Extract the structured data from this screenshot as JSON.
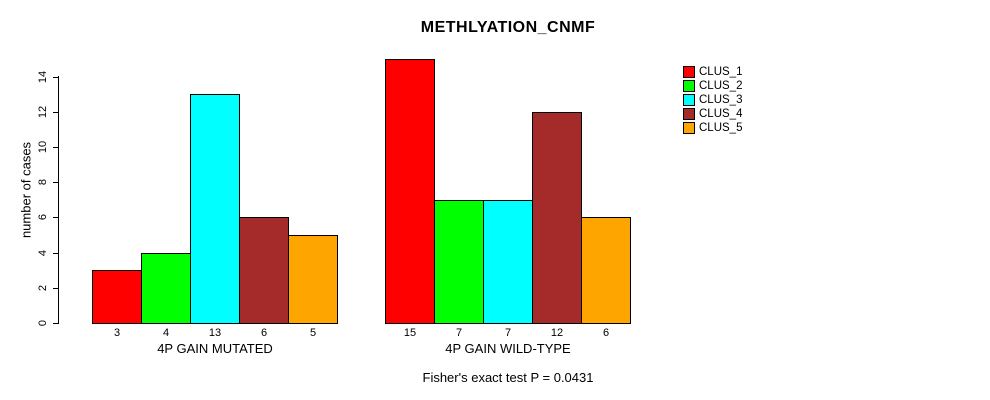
{
  "title": "METHLYATION_CNMF",
  "footer": "Fisher's exact test P = 0.0431",
  "y_axis": {
    "label": "number of cases",
    "ticks": [
      0,
      2,
      4,
      6,
      8,
      10,
      12,
      14
    ]
  },
  "chart_data": {
    "type": "bar",
    "title": "METHLYATION_CNMF",
    "xlabel": "",
    "ylabel": "number of cases",
    "ylim": [
      0,
      15
    ],
    "yticks": [
      0,
      2,
      4,
      6,
      8,
      10,
      12,
      14
    ],
    "grid": false,
    "legend_position": "top-right",
    "series": [
      {
        "name": "CLUS_1",
        "color": "#FF0000"
      },
      {
        "name": "CLUS_2",
        "color": "#00FF00"
      },
      {
        "name": "CLUS_3",
        "color": "#00FFFF"
      },
      {
        "name": "CLUS_4",
        "color": "#A52A2A"
      },
      {
        "name": "CLUS_5",
        "color": "#FFA500"
      }
    ],
    "groups": [
      {
        "label": "4P GAIN MUTATED",
        "values": [
          3,
          4,
          13,
          6,
          5
        ]
      },
      {
        "label": "4P GAIN WILD-TYPE",
        "values": [
          15,
          7,
          7,
          12,
          6
        ]
      }
    ],
    "bar_value_labels_shown": true,
    "annotation": "Fisher's exact test P = 0.0431"
  }
}
